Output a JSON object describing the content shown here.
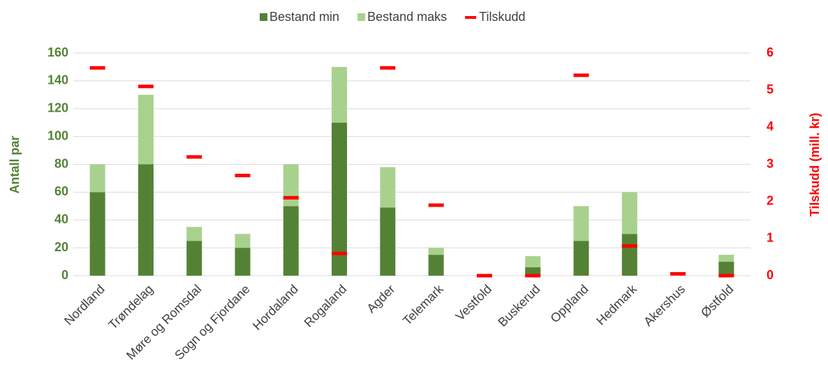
{
  "chart_data": {
    "type": "bar",
    "stacked": true,
    "categories": [
      "Nordland",
      "Trøndelag",
      "Møre og Romsdal",
      "Sogn og Fjordane",
      "Hordaland",
      "Rogaland",
      "Agder",
      "Telemark",
      "Vestfold",
      "Buskerud",
      "Oppland",
      "Hedmark",
      "Akershus",
      "Østfold"
    ],
    "series": [
      {
        "name": "Bestand min",
        "color": "#548235",
        "values": [
          60,
          80,
          25,
          20,
          50,
          110,
          49,
          15,
          0,
          6,
          25,
          30,
          0,
          10
        ]
      },
      {
        "name": "Bestand maks",
        "color": "#a9d18e",
        "values": [
          20,
          50,
          10,
          10,
          30,
          40,
          29,
          5,
          0,
          8,
          25,
          30,
          0,
          5
        ]
      },
      {
        "name": "Tilskudd",
        "color": "#ff0000",
        "axis": "y2",
        "values": [
          5.6,
          5.1,
          3.2,
          2.7,
          2.1,
          0.6,
          5.6,
          1.9,
          0,
          0,
          5.4,
          0.8,
          0.05,
          0
        ]
      }
    ],
    "ylabel": "Antall par",
    "y2label": "Tilskudd (mill. kr)",
    "ylim": [
      0,
      160
    ],
    "yticks": [
      0,
      20,
      40,
      60,
      80,
      100,
      120,
      140,
      160
    ],
    "y2lim": [
      0,
      6
    ],
    "y2ticks": [
      0,
      1,
      2,
      3,
      4,
      5,
      6
    ],
    "grid": true,
    "legend": "top"
  }
}
